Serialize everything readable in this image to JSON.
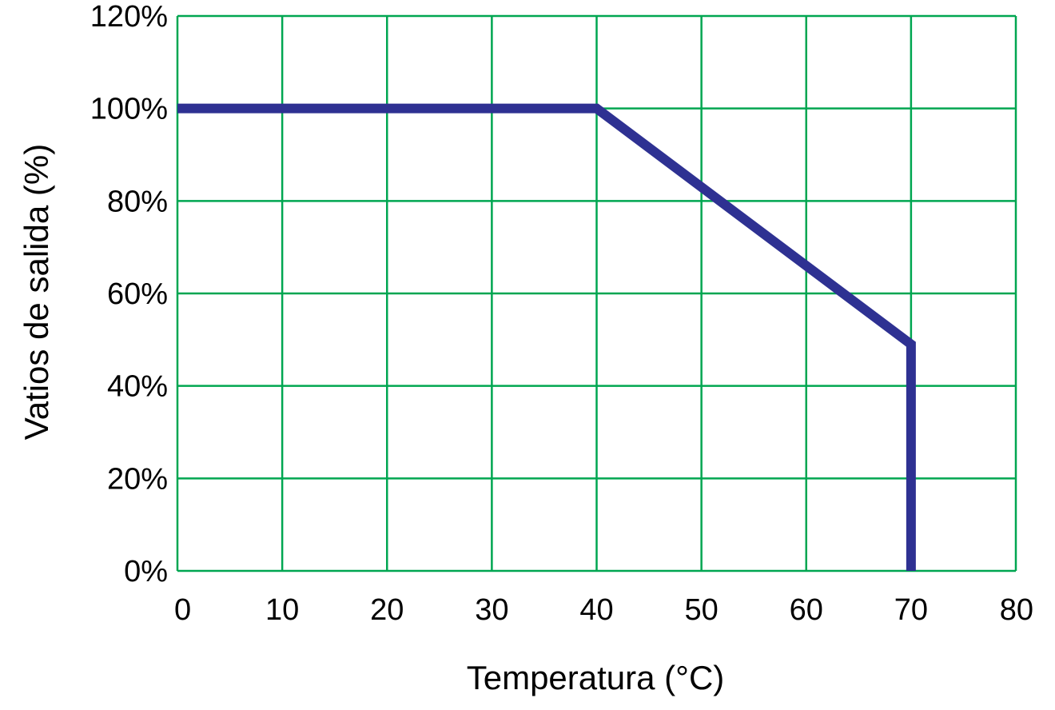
{
  "chart_data": {
    "type": "line",
    "title": "",
    "xlabel": "Temperatura (°C)",
    "ylabel": "Vatios de salida (%)",
    "xlim": [
      0,
      80
    ],
    "ylim": [
      0,
      120
    ],
    "x_ticks": [
      0,
      10,
      20,
      30,
      40,
      50,
      60,
      70,
      80
    ],
    "x_tick_labels": [
      "0",
      "10",
      "20",
      "30",
      "40",
      "50",
      "60",
      "70",
      "80"
    ],
    "y_ticks": [
      0,
      20,
      40,
      60,
      80,
      100,
      120
    ],
    "y_tick_labels": [
      "0%",
      "20%",
      "40%",
      "60%",
      "80%",
      "100%",
      "120%"
    ],
    "grid": true,
    "series": [
      {
        "x": [
          0,
          40,
          70,
          70
        ],
        "y": [
          100,
          100,
          49,
          0
        ]
      }
    ],
    "colors": {
      "grid": "#00a651",
      "line": "#2e3192"
    }
  }
}
